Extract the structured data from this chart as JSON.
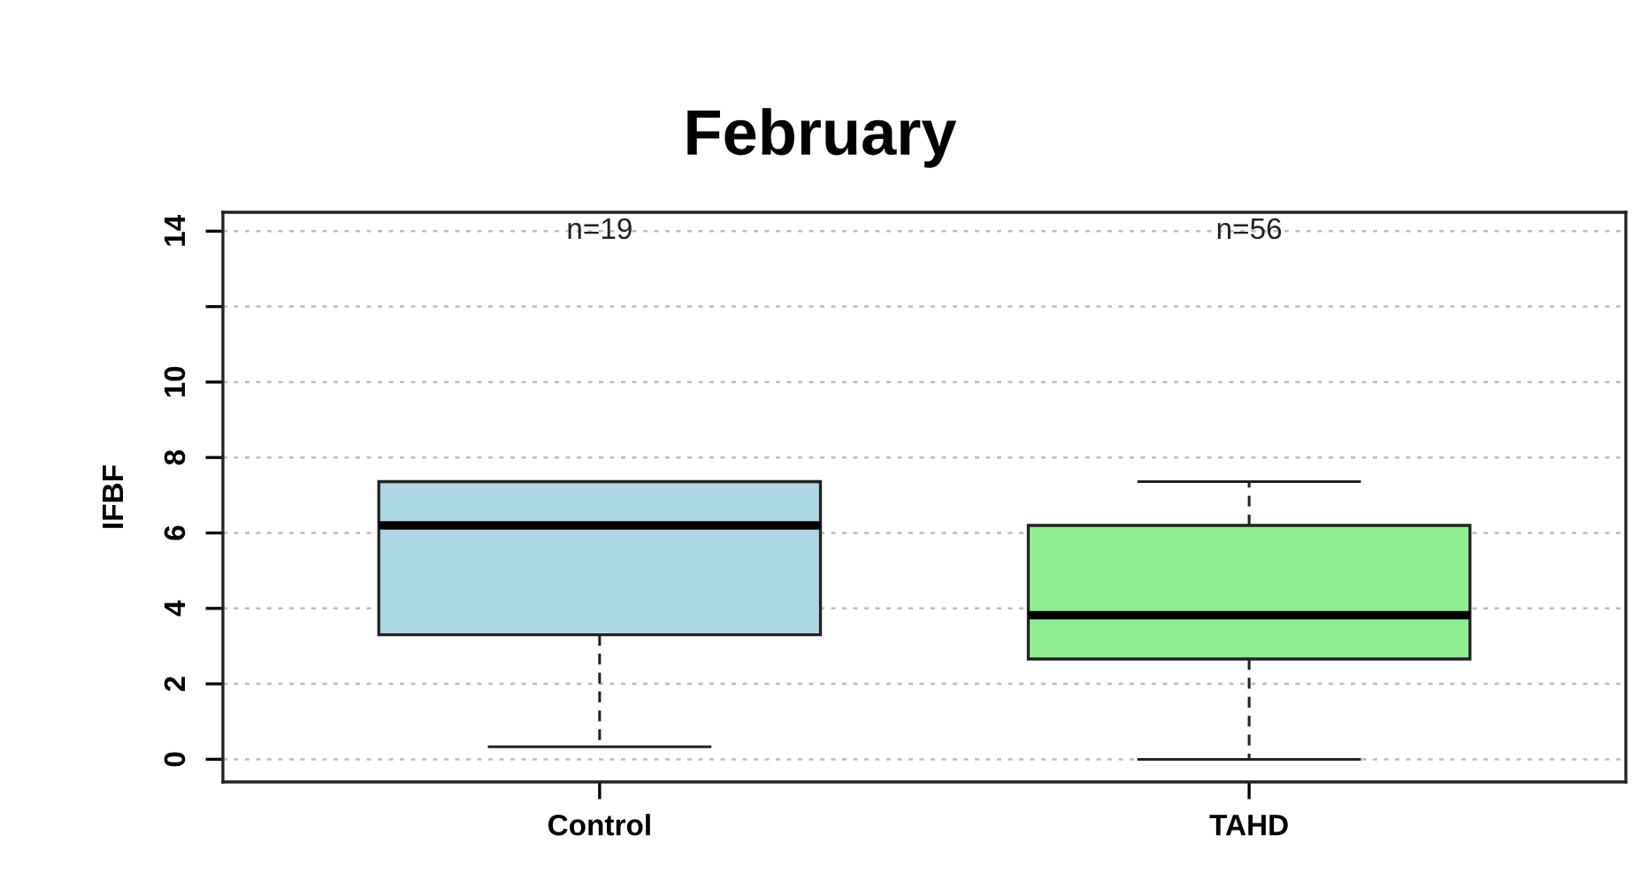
{
  "chart_data": {
    "type": "box",
    "title": "February",
    "ylabel": "IFBF",
    "categories": [
      "Control",
      "TAHD"
    ],
    "boxes": [
      {
        "low": 0.33,
        "q1": 3.3,
        "median": 6.2,
        "q3": 7.36,
        "high": 7.36
      },
      {
        "low": 0,
        "q1": 2.66,
        "median": 3.82,
        "q3": 6.2,
        "high": 7.36
      }
    ],
    "colors": [
      "#add8e6",
      "#90ee90"
    ],
    "annotations": [
      "n=19",
      "n=56"
    ],
    "ylim": [
      -0.6,
      14.5
    ],
    "yticks": [
      0,
      2,
      4,
      6,
      8,
      10,
      {
        "value": 12,
        "label": null
      },
      14
    ],
    "grid": "y"
  }
}
